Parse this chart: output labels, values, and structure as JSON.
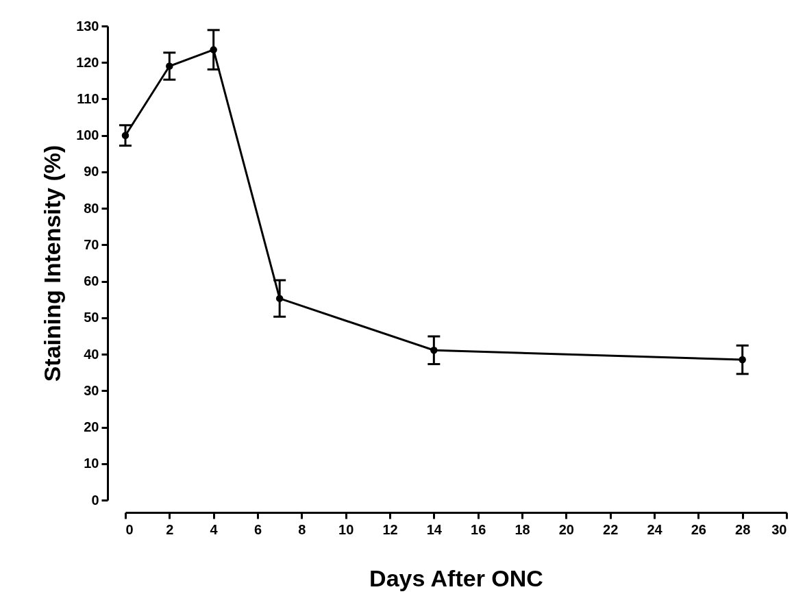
{
  "chart_data": {
    "type": "line",
    "xlabel": "Days After ONC",
    "ylabel": "Staining Intensity (%)",
    "x": [
      0,
      2,
      4,
      7,
      14,
      28
    ],
    "series": [
      {
        "color": "#000000",
        "values": [
          100,
          119,
          123.5,
          55.3,
          41.1,
          38.5
        ],
        "errors": [
          2.8,
          3.7,
          5.4,
          5,
          3.8,
          3.9
        ]
      }
    ],
    "xlim": [
      0,
      30
    ],
    "xticks": [
      0,
      2,
      4,
      6,
      8,
      10,
      12,
      14,
      16,
      18,
      20,
      22,
      24,
      26,
      28,
      30
    ],
    "ylim": [
      0,
      130
    ],
    "yticks": [
      0,
      10,
      20,
      30,
      40,
      50,
      60,
      70,
      80,
      90,
      100,
      110,
      120,
      130
    ],
    "grid": false,
    "legend": false,
    "marker": "circle",
    "line_style": "solid"
  }
}
